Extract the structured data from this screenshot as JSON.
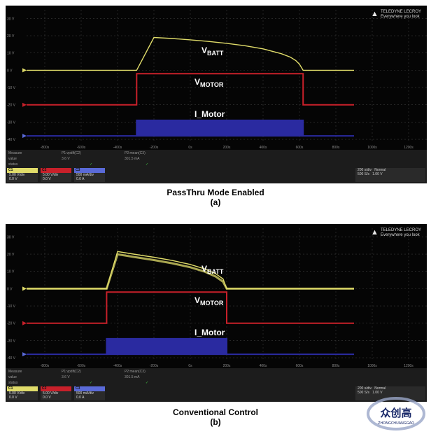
{
  "chart_data": [
    {
      "type": "line",
      "caption": "PassThru Mode Enabled",
      "label": "(a)",
      "y_tick_labels": [
        "30 V",
        "20 V",
        "10 V",
        "0 V",
        "-10 V",
        "-20 V",
        "-30 V",
        "-40 V"
      ],
      "x_tick_labels": [
        "-800s",
        "-600s",
        "-400s",
        "-200s",
        "0s",
        "200s",
        "400s",
        "600s",
        "800s",
        "1000s",
        "1200s"
      ],
      "series": [
        {
          "name": "VBATT",
          "color": "#e0dc6a",
          "x": [
            -900,
            -295,
            -200,
            -100,
            0,
            100,
            200,
            300,
            400,
            500,
            550,
            580,
            600,
            620,
            900
          ],
          "y": [
            0,
            0,
            19,
            18.4,
            17.6,
            16.7,
            15.6,
            14.2,
            12.4,
            9.6,
            7.6,
            5.6,
            3.5,
            0,
            0
          ]
        },
        {
          "name": "VMOTOR",
          "color": "#c8202a",
          "x": [
            -900,
            -295,
            -295,
            620,
            620,
            900
          ],
          "y": [
            -20,
            -20,
            -2,
            -2,
            -20,
            -20
          ]
        },
        {
          "name": "I_Motor",
          "color": "#2a2aa0",
          "x": [
            -900,
            -295,
            -295,
            620,
            620,
            900
          ],
          "y": [
            -38,
            -38,
            -29,
            -29,
            -38,
            -38
          ]
        }
      ],
      "xlim": [
        -900,
        1300
      ],
      "ylim": [
        -42,
        35
      ],
      "annotations": [
        {
          "text": "V",
          "sub": "BATT"
        },
        {
          "text": "V",
          "sub": "MOTOR"
        },
        {
          "text": "I_Motor",
          "sub": ""
        }
      ]
    },
    {
      "type": "line",
      "caption": "Conventional Control",
      "label": "(b)",
      "y_tick_labels": [
        "30 V",
        "20 V",
        "10 V",
        "0 V",
        "-10 V",
        "-20 V",
        "-30 V",
        "-40 V"
      ],
      "x_tick_labels": [
        "-800s",
        "-600s",
        "-400s",
        "-200s",
        "0s",
        "200s",
        "400s",
        "600s",
        "800s",
        "1000s",
        "1200s"
      ],
      "series": [
        {
          "name": "VBATT",
          "color": "#e0dc6a",
          "x": [
            -900,
            -460,
            -400,
            -300,
            -200,
            -100,
            0,
            80,
            140,
            180,
            200,
            900
          ],
          "y": [
            0,
            0,
            21.5,
            19.8,
            18.2,
            16.3,
            14,
            11.4,
            8.6,
            5.6,
            0,
            0
          ]
        },
        {
          "name": "VMOTOR",
          "color": "#c8202a",
          "x": [
            -900,
            -460,
            -460,
            200,
            200,
            900
          ],
          "y": [
            -20,
            -20,
            -2,
            -2,
            -20,
            -20
          ]
        },
        {
          "name": "I_Motor",
          "color": "#2a2aa0",
          "x": [
            -900,
            -460,
            -460,
            200,
            200,
            900
          ],
          "y": [
            -38,
            -38,
            -29,
            -29,
            -38,
            -38
          ]
        }
      ],
      "xlim": [
        -900,
        1300
      ],
      "ylim": [
        -42,
        35
      ],
      "annotations": [
        {
          "text": "V",
          "sub": "BATT"
        },
        {
          "text": "V",
          "sub": "MOTOR"
        },
        {
          "text": "I_Motor",
          "sub": ""
        }
      ]
    }
  ],
  "brand": {
    "line1": "TELEDYNE LECROY",
    "line2": "Everywhere you look"
  },
  "status": {
    "row1": [
      "Measure",
      "P1:vpdif(C2)",
      "P2:mean(C3)"
    ],
    "row2": [
      "value",
      "3.6 V",
      "301.5 mA"
    ],
    "row3": [
      "status",
      "✓",
      "✓"
    ]
  },
  "channels": [
    {
      "name": "C1",
      "color": "#e0dc6a",
      "scale": "5.00 V/div",
      "offset": "0.0 V"
    },
    {
      "name": "C2",
      "color": "#c8202a",
      "scale": "5.00 V/div",
      "offset": "0.0 V"
    },
    {
      "name": "C3",
      "color": "#5a6ad8",
      "scale": "500 mA/div",
      "offset": "0.0 A"
    }
  ],
  "trigger": {
    "timebase": "200 s/div",
    "rate": "500 S/s",
    "mode": "Normal",
    "level": "1.00 V"
  },
  "watermark": {
    "brand": "众创高",
    "sub": "ZHONGCHUANGGAO"
  }
}
